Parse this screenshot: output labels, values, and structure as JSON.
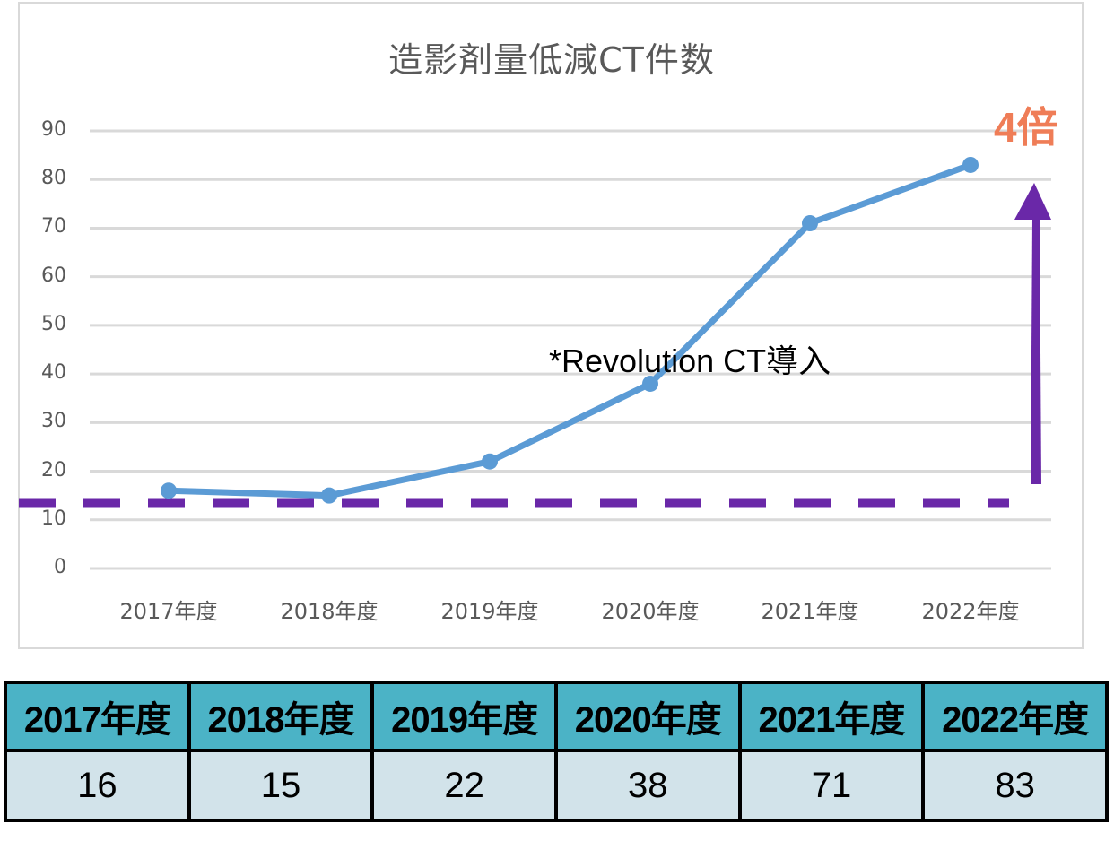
{
  "chart": {
    "title": "造影剤量低減CT件数",
    "y_ticks": [
      "90",
      "80",
      "70",
      "60",
      "50",
      "40",
      "30",
      "20",
      "10",
      "0"
    ],
    "x_ticks": [
      "2017年度",
      "2018年度",
      "2019年度",
      "2020年度",
      "2021年度",
      "2022年度"
    ],
    "annotation": "*Revolution CT導入",
    "badge": "4倍",
    "colors": {
      "line": "#5b9bd5",
      "arrow": "#6a28a8",
      "badge": "#ef7d57",
      "grid": "#d9d9d9",
      "header": "#4bb3c6",
      "cell": "#d2e3ea"
    }
  },
  "table": {
    "headers": [
      "2017年度",
      "2018年度",
      "2019年度",
      "2020年度",
      "2021年度",
      "2022年度"
    ],
    "values": [
      "16",
      "15",
      "22",
      "38",
      "71",
      "83"
    ]
  },
  "chart_data": {
    "type": "line",
    "title": "造影剤量低減CT件数",
    "categories": [
      "2017年度",
      "2018年度",
      "2019年度",
      "2020年度",
      "2021年度",
      "2022年度"
    ],
    "series": [
      {
        "name": "造影剤量低減CT件数",
        "values": [
          16,
          15,
          22,
          38,
          71,
          83
        ]
      }
    ],
    "xlabel": "",
    "ylabel": "",
    "ylim": [
      0,
      90
    ],
    "yticks": [
      0,
      10,
      20,
      30,
      40,
      50,
      60,
      70,
      80,
      90
    ],
    "grid": true,
    "legend": "none",
    "annotations": [
      {
        "text": "*Revolution CT導入",
        "near": "2020年度"
      },
      {
        "text": "4倍",
        "note": "upward arrow from baseline ~14 to ~83"
      },
      {
        "type": "dashed-hline",
        "y": 14
      }
    ]
  }
}
